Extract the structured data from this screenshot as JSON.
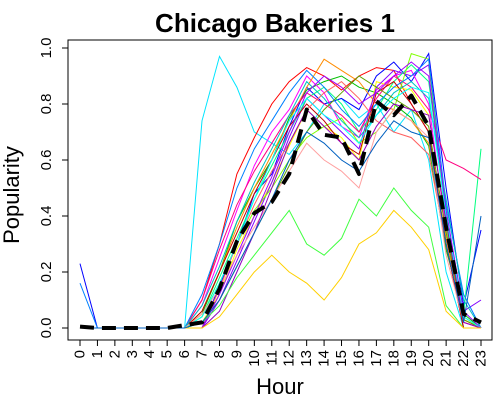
{
  "chart_data": {
    "type": "line",
    "title": "Chicago Bakeries 1",
    "xlabel": "Hour",
    "ylabel": "Popularity",
    "x": [
      0,
      1,
      2,
      3,
      4,
      5,
      6,
      7,
      8,
      9,
      10,
      11,
      12,
      13,
      14,
      15,
      16,
      17,
      18,
      19,
      20,
      21,
      22,
      23
    ],
    "x_tick_labels": [
      "0",
      "1",
      "2",
      "3",
      "4",
      "5",
      "6",
      "7",
      "8",
      "9",
      "10",
      "11",
      "12",
      "13",
      "14",
      "15",
      "16",
      "17",
      "18",
      "19",
      "20",
      "21",
      "22",
      "23"
    ],
    "xlim": [
      0,
      23
    ],
    "ylim": [
      0.0,
      1.0
    ],
    "y_ticks": [
      0.0,
      0.2,
      0.4,
      0.6,
      0.8,
      1.0
    ],
    "y_tick_labels": [
      "0.0",
      "0.2",
      "0.4",
      "0.6",
      "0.8",
      "1.0"
    ],
    "grid": false,
    "mean_series": {
      "style": "dashed",
      "color": "#000000",
      "values": [
        0.005,
        0.0,
        0.0,
        0.0,
        0.0,
        0.0,
        0.01,
        0.02,
        0.14,
        0.31,
        0.41,
        0.45,
        0.55,
        0.78,
        0.69,
        0.68,
        0.55,
        0.81,
        0.76,
        0.83,
        0.72,
        0.36,
        0.05,
        0.02
      ]
    },
    "series": [
      {
        "color": "#00e5ff",
        "values": [
          0,
          0,
          0,
          0,
          0,
          0,
          0,
          0.74,
          0.97,
          0.86,
          0.7,
          0.66,
          0.62,
          0.7,
          0.8,
          0.82,
          0.75,
          0.8,
          0.7,
          0.78,
          0.6,
          0.2,
          0.0,
          0.0
        ]
      },
      {
        "color": "#ff0000",
        "values": [
          0,
          0,
          0,
          0,
          0,
          0,
          0,
          0.1,
          0.3,
          0.55,
          0.68,
          0.8,
          0.88,
          0.93,
          0.9,
          0.85,
          0.9,
          0.93,
          0.92,
          0.8,
          0.7,
          0.3,
          0.0,
          0.0
        ]
      },
      {
        "color": "#00c000",
        "values": [
          0,
          0,
          0,
          0,
          0,
          0,
          0,
          0.05,
          0.2,
          0.38,
          0.5,
          0.6,
          0.75,
          0.85,
          0.88,
          0.9,
          0.86,
          0.84,
          0.8,
          0.75,
          0.65,
          0.28,
          0.05,
          0.0
        ]
      },
      {
        "color": "#0000ff",
        "values": [
          0.23,
          0.0,
          0,
          0,
          0,
          0,
          0,
          0,
          0.15,
          0.3,
          0.48,
          0.55,
          0.72,
          0.86,
          0.8,
          0.82,
          0.78,
          0.9,
          0.95,
          0.88,
          0.98,
          0.5,
          0.08,
          0.35
        ]
      },
      {
        "color": "#ff00ff",
        "values": [
          0,
          0,
          0,
          0,
          0,
          0,
          0,
          0.08,
          0.25,
          0.42,
          0.58,
          0.7,
          0.78,
          0.9,
          0.84,
          0.72,
          0.68,
          0.85,
          0.9,
          0.92,
          0.8,
          0.35,
          0.02,
          0.0
        ]
      },
      {
        "color": "#ffff00",
        "values": [
          0,
          0,
          0,
          0,
          0,
          0,
          0,
          0.02,
          0.12,
          0.28,
          0.4,
          0.52,
          0.65,
          0.78,
          0.72,
          0.68,
          0.6,
          0.88,
          0.86,
          0.85,
          0.76,
          0.38,
          0.04,
          0.0
        ]
      },
      {
        "color": "#ff8c00",
        "values": [
          0,
          0,
          0,
          0,
          0,
          0,
          0,
          0.06,
          0.2,
          0.36,
          0.5,
          0.62,
          0.74,
          0.86,
          0.96,
          0.92,
          0.88,
          0.8,
          0.78,
          0.74,
          0.66,
          0.32,
          0.03,
          0.0
        ]
      },
      {
        "color": "#8000ff",
        "values": [
          0,
          0,
          0,
          0,
          0,
          0,
          0,
          0.0,
          0.1,
          0.24,
          0.38,
          0.52,
          0.68,
          0.82,
          0.76,
          0.7,
          0.64,
          0.86,
          0.92,
          0.9,
          0.94,
          0.4,
          0.06,
          0.1
        ]
      },
      {
        "color": "#00ff80",
        "values": [
          0,
          0,
          0,
          0,
          0,
          0,
          0,
          0.04,
          0.18,
          0.32,
          0.46,
          0.58,
          0.7,
          0.82,
          0.86,
          0.8,
          0.7,
          0.78,
          0.88,
          0.94,
          0.88,
          0.42,
          0.05,
          0.64
        ]
      },
      {
        "color": "#ff0080",
        "values": [
          0,
          0,
          0,
          0,
          0,
          0,
          0,
          0.1,
          0.28,
          0.44,
          0.56,
          0.66,
          0.76,
          0.84,
          0.8,
          0.76,
          0.7,
          0.82,
          0.9,
          0.86,
          0.78,
          0.6,
          0.57,
          0.53
        ]
      },
      {
        "color": "#80ff00",
        "values": [
          0,
          0,
          0,
          0,
          0,
          0,
          0,
          0.04,
          0.16,
          0.3,
          0.42,
          0.5,
          0.6,
          0.68,
          0.72,
          0.75,
          0.66,
          0.7,
          0.78,
          0.98,
          0.96,
          0.36,
          0.04,
          0.0
        ]
      },
      {
        "color": "#0080ff",
        "values": [
          0.16,
          0.0,
          0,
          0,
          0,
          0,
          0,
          0.12,
          0.3,
          0.5,
          0.64,
          0.74,
          0.84,
          0.92,
          0.86,
          0.78,
          0.72,
          0.8,
          0.86,
          0.9,
          0.96,
          0.44,
          0.12,
          0.0
        ]
      },
      {
        "color": "#c00000",
        "values": [
          0,
          0,
          0,
          0,
          0,
          0,
          0,
          0.06,
          0.2,
          0.34,
          0.48,
          0.6,
          0.72,
          0.8,
          0.74,
          0.66,
          0.62,
          0.84,
          0.88,
          0.8,
          0.7,
          0.3,
          0.0,
          0.0
        ]
      },
      {
        "color": "#00c0c0",
        "values": [
          0,
          0,
          0,
          0,
          0,
          0,
          0,
          0.08,
          0.22,
          0.38,
          0.52,
          0.64,
          0.76,
          0.88,
          0.82,
          0.74,
          0.68,
          0.76,
          0.84,
          0.88,
          0.82,
          0.46,
          0.1,
          0.0
        ]
      },
      {
        "color": "#ff6060",
        "values": [
          0,
          0,
          0,
          0,
          0,
          0,
          0,
          0.0,
          0.14,
          0.3,
          0.44,
          0.56,
          0.66,
          0.78,
          0.84,
          0.88,
          0.82,
          0.74,
          0.7,
          0.68,
          0.62,
          0.3,
          0.02,
          0.0
        ]
      },
      {
        "color": "#60a000",
        "values": [
          0,
          0,
          0,
          0,
          0,
          0,
          0,
          0.02,
          0.1,
          0.22,
          0.34,
          0.46,
          0.58,
          0.7,
          0.78,
          0.84,
          0.9,
          0.86,
          0.82,
          0.78,
          0.72,
          0.34,
          0.03,
          0.0
        ]
      },
      {
        "color": "#a000ff",
        "values": [
          0,
          0,
          0,
          0,
          0,
          0,
          0,
          0.0,
          0.12,
          0.26,
          0.4,
          0.54,
          0.7,
          0.84,
          0.9,
          0.86,
          0.8,
          0.84,
          0.9,
          0.95,
          0.9,
          0.42,
          0.06,
          0.0
        ]
      },
      {
        "color": "#00ffff",
        "values": [
          0,
          0,
          0,
          0,
          0,
          0,
          0,
          0.04,
          0.16,
          0.3,
          0.46,
          0.6,
          0.74,
          0.82,
          0.76,
          0.72,
          0.66,
          0.76,
          0.82,
          0.86,
          0.84,
          0.4,
          0.04,
          0.0
        ]
      },
      {
        "color": "#ffa0a0",
        "values": [
          0,
          0,
          0,
          0,
          0,
          0,
          0,
          0.05,
          0.14,
          0.26,
          0.36,
          0.46,
          0.56,
          0.66,
          0.6,
          0.56,
          0.5,
          0.7,
          0.78,
          0.74,
          0.68,
          0.26,
          0.02,
          0.0
        ]
      },
      {
        "color": "#9000c0",
        "values": [
          0,
          0,
          0,
          0,
          0,
          0,
          0,
          0.0,
          0.06,
          0.2,
          0.34,
          0.5,
          0.66,
          0.78,
          0.72,
          0.66,
          0.6,
          0.72,
          0.8,
          0.78,
          0.76,
          0.38,
          0.02,
          0.0
        ]
      },
      {
        "color": "#40ff40",
        "values": [
          0,
          0,
          0,
          0,
          0,
          0,
          0,
          0.02,
          0.08,
          0.18,
          0.26,
          0.34,
          0.42,
          0.3,
          0.26,
          0.32,
          0.46,
          0.4,
          0.5,
          0.42,
          0.36,
          0.08,
          0.0,
          0.0
        ]
      },
      {
        "color": "#ffd000",
        "values": [
          0,
          0,
          0,
          0,
          0,
          0,
          0,
          0.0,
          0.04,
          0.12,
          0.2,
          0.26,
          0.2,
          0.16,
          0.1,
          0.18,
          0.3,
          0.34,
          0.42,
          0.36,
          0.28,
          0.06,
          0.0,
          0.0
        ]
      },
      {
        "color": "#0060c0",
        "values": [
          0,
          0,
          0,
          0,
          0,
          0,
          0,
          0.02,
          0.1,
          0.22,
          0.34,
          0.46,
          0.6,
          0.7,
          0.66,
          0.6,
          0.56,
          0.66,
          0.74,
          0.7,
          0.68,
          0.3,
          0.02,
          0.4
        ]
      }
    ]
  }
}
